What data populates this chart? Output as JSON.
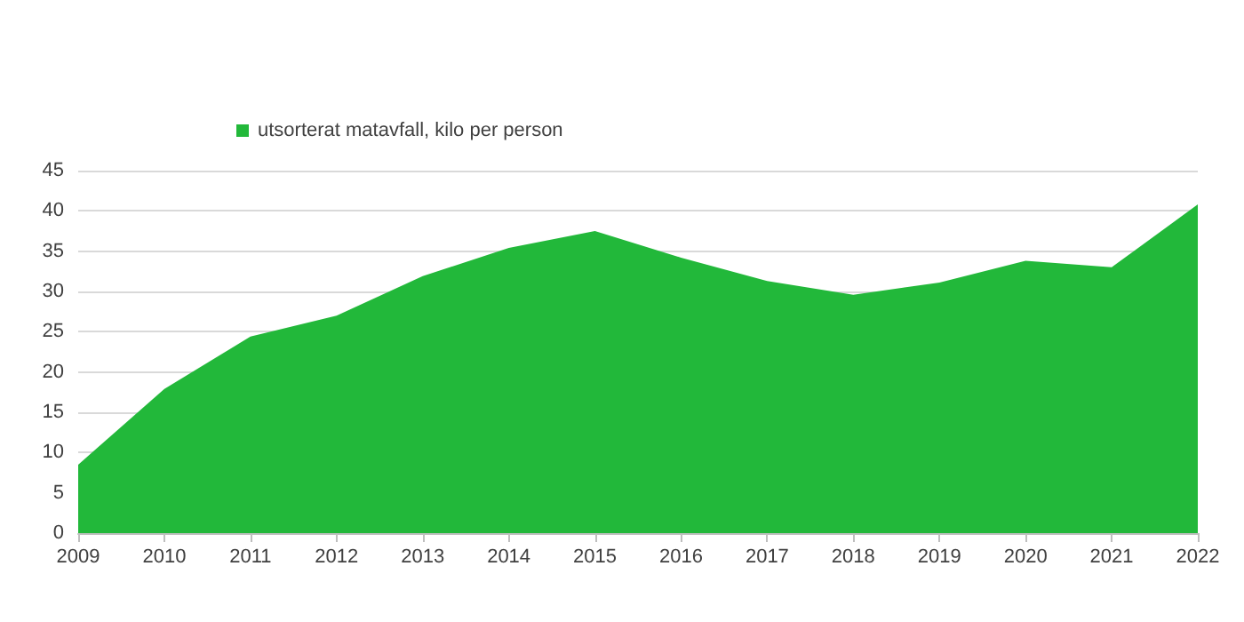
{
  "chart_data": {
    "type": "area",
    "categories": [
      "2009",
      "2010",
      "2011",
      "2012",
      "2013",
      "2014",
      "2015",
      "2016",
      "2017",
      "2018",
      "2019",
      "2020",
      "2021",
      "2022"
    ],
    "series": [
      {
        "name": "utsorterat matavfall, kilo per person",
        "color": "#22b83a",
        "values": [
          8.5,
          17.9,
          24.4,
          27.0,
          31.9,
          35.4,
          37.5,
          34.2,
          31.3,
          29.6,
          31.1,
          33.8,
          33.0,
          40.8
        ]
      }
    ],
    "ylim": [
      0,
      45
    ],
    "yticks": [
      0,
      5,
      10,
      15,
      20,
      25,
      30,
      35,
      40,
      45
    ],
    "grid": "y",
    "legend": "top"
  }
}
